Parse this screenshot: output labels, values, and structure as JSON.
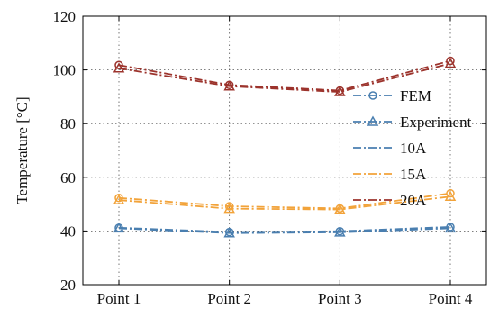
{
  "chart_data": {
    "type": "line",
    "categories": [
      "Point 1",
      "Point 2",
      "Point 3",
      "Point 4"
    ],
    "ylabel": "Temperature [°C]",
    "xlabel": "",
    "ylim": [
      20,
      120
    ],
    "yticks": [
      20,
      40,
      60,
      80,
      100,
      120
    ],
    "grid": true,
    "legend_position": "right",
    "marker_legend": [
      {
        "label": "FEM",
        "marker": "circle"
      },
      {
        "label": "Experiment",
        "marker": "triangle"
      }
    ],
    "legend_entries": [
      {
        "label": "10A",
        "color": "#4a7fb0"
      },
      {
        "label": "15A",
        "color": "#f2a33a"
      },
      {
        "label": "20A",
        "color": "#9c332c"
      }
    ],
    "series": [
      {
        "name": "10A",
        "kind": "FEM",
        "color": "#4a7fb0",
        "marker": "circle",
        "values": [
          41.2,
          39.6,
          39.9,
          41.5
        ]
      },
      {
        "name": "10A",
        "kind": "Experiment",
        "color": "#4a7fb0",
        "marker": "triangle",
        "values": [
          41.0,
          39.2,
          39.5,
          41.0
        ]
      },
      {
        "name": "15A",
        "kind": "FEM",
        "color": "#f2a33a",
        "marker": "circle",
        "values": [
          52.3,
          49.2,
          48.4,
          54.0
        ]
      },
      {
        "name": "15A",
        "kind": "Experiment",
        "color": "#f2a33a",
        "marker": "triangle",
        "values": [
          51.5,
          48.3,
          48.0,
          52.8
        ]
      },
      {
        "name": "20A",
        "kind": "FEM",
        "color": "#9c332c",
        "marker": "circle",
        "values": [
          101.8,
          94.4,
          92.3,
          103.4
        ]
      },
      {
        "name": "20A",
        "kind": "Experiment",
        "color": "#9c332c",
        "marker": "triangle",
        "values": [
          100.6,
          93.9,
          91.8,
          102.4
        ]
      }
    ]
  }
}
